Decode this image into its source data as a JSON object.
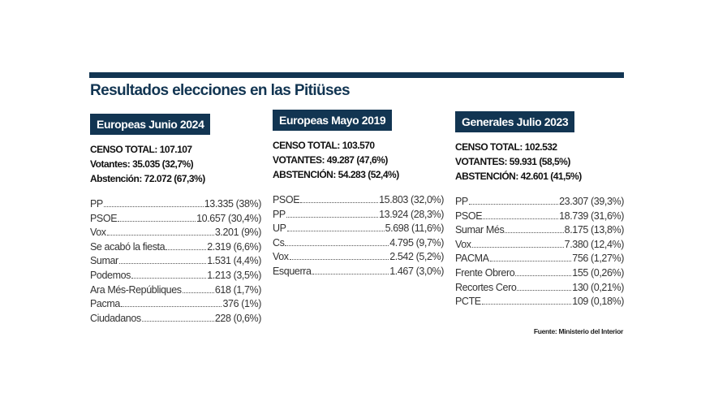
{
  "title": "Resultados elecciones en las Pitiüses",
  "colors": {
    "accent": "#123552"
  },
  "columns": [
    {
      "heading": "Europeas Junio 2024",
      "stats": [
        "CENSO TOTAL: 107.107",
        "Votantes: 35.035 (32,7%)",
        "Abstención: 72.072 (67,3%)"
      ],
      "parties": [
        {
          "name": "PP",
          "value": "13.335 (38%)"
        },
        {
          "name": "PSOE",
          "value": "10.657 (30,4%)"
        },
        {
          "name": "Vox",
          "value": "3.201 (9%)"
        },
        {
          "name": "Se acabó la fiesta",
          "value": "2.319 (6,6%)"
        },
        {
          "name": "Sumar",
          "value": "1.531 (4,4%)"
        },
        {
          "name": "Podemos",
          "value": "1.213 (3,5%)"
        },
        {
          "name": "Ara Més-Repúbliques",
          "value": "618 (1,7%)"
        },
        {
          "name": "Pacma",
          "value": "376 (1%)"
        },
        {
          "name": "Ciudadanos",
          "value": "228 (0,6%)"
        }
      ]
    },
    {
      "heading": "Europeas Mayo 2019",
      "stats": [
        "CENSO TOTAL: 103.570",
        "VOTANTES: 49.287 (47,6%)",
        "ABSTENCIÓN: 54.283 (52,4%)"
      ],
      "parties": [
        {
          "name": "PSOE",
          "value": "15.803 (32,0%)"
        },
        {
          "name": "PP",
          "value": "13.924 (28,3%)"
        },
        {
          "name": "UP",
          "value": "5.698 (11,6%)"
        },
        {
          "name": "Cs",
          "value": "4.795 (9,7%)"
        },
        {
          "name": "Vox",
          "value": "2.542 (5,2%)"
        },
        {
          "name": "Esquerra",
          "value": "1.467 (3,0%)"
        }
      ]
    },
    {
      "heading": "Generales Julio 2023",
      "stats": [
        "CENSO TOTAL: 102.532",
        "VOTANTES: 59.931 (58,5%)",
        "ABSTENCIÓN: 42.601 (41,5%)"
      ],
      "parties": [
        {
          "name": "PP",
          "value": "23.307 (39,3%)"
        },
        {
          "name": "PSOE",
          "value": "18.739 (31,6%)"
        },
        {
          "name": "Sumar Més",
          "value": "8.175 (13,8%)"
        },
        {
          "name": "Vox",
          "value": "7.380 (12,4%)"
        },
        {
          "name": "PACMA",
          "value": "756 (1,27%)"
        },
        {
          "name": "Frente Obrero",
          "value": "155 (0,26%)"
        },
        {
          "name": "Recortes Cero",
          "value": "130 (0,21%)"
        },
        {
          "name": "PCTE",
          "value": "109 (0,18%)"
        }
      ]
    }
  ],
  "source": "Fuente: Ministerio del Interior"
}
